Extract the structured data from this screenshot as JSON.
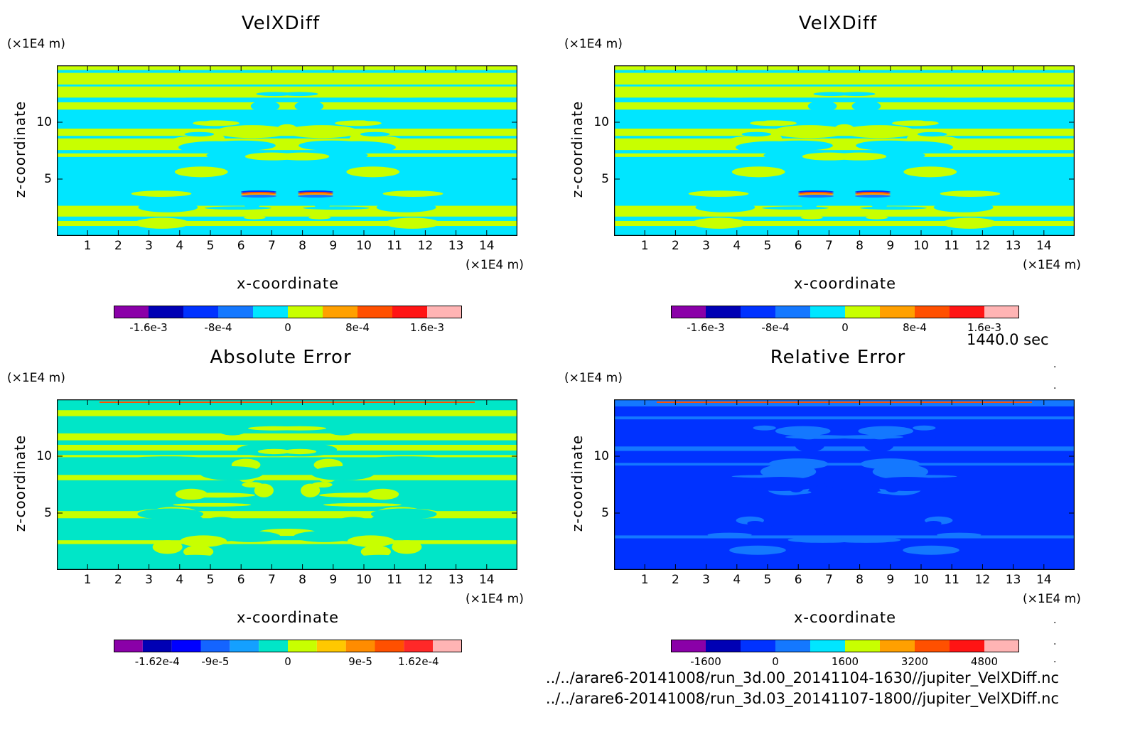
{
  "chart_data": [
    {
      "type": "heatmap",
      "title": "VelXDiff",
      "xlabel": "x-coordinate",
      "ylabel": "z-coordinate",
      "x_unit": "(×1E4 m)",
      "y_unit": "(×1E4 m)",
      "xticks": [
        "1",
        "2",
        "3",
        "4",
        "5",
        "6",
        "7",
        "8",
        "9",
        "10",
        "11",
        "12",
        "13",
        "14"
      ],
      "yticks": [
        "5",
        "10"
      ],
      "xlim": [
        0,
        15
      ],
      "ylim": [
        0,
        15
      ],
      "colorbar": {
        "colors": [
          "#8a00a8",
          "#0000b4",
          "#0032ff",
          "#1478ff",
          "#00e6ff",
          "#c8ff00",
          "#ffa000",
          "#ff5000",
          "#ff1414",
          "#ffb4b4"
        ],
        "tick_labels": [
          "-1.6e-3",
          "-8e-4",
          "0",
          "8e-4",
          "1.6e-3"
        ],
        "tick_values": [
          -0.0016,
          -0.0008,
          0,
          0.0008,
          0.0016
        ],
        "range": [
          -0.002,
          0.002
        ]
      },
      "dominant_colors": [
        "#00e6ff",
        "#c8ff00"
      ],
      "pattern": "velxdiff"
    },
    {
      "type": "heatmap",
      "title": "VelXDiff",
      "xlabel": "x-coordinate",
      "ylabel": "z-coordinate",
      "x_unit": "(×1E4 m)",
      "y_unit": "(×1E4 m)",
      "xticks": [
        "1",
        "2",
        "3",
        "4",
        "5",
        "6",
        "7",
        "8",
        "9",
        "10",
        "11",
        "12",
        "13",
        "14"
      ],
      "yticks": [
        "5",
        "10"
      ],
      "xlim": [
        0,
        15
      ],
      "ylim": [
        0,
        15
      ],
      "colorbar": {
        "colors": [
          "#8a00a8",
          "#0000b4",
          "#0032ff",
          "#1478ff",
          "#00e6ff",
          "#c8ff00",
          "#ffa000",
          "#ff5000",
          "#ff1414",
          "#ffb4b4"
        ],
        "tick_labels": [
          "-1.6e-3",
          "-8e-4",
          "0",
          "8e-4",
          "1.6e-3"
        ],
        "tick_values": [
          -0.0016,
          -0.0008,
          0,
          0.0008,
          0.0016
        ],
        "range": [
          -0.002,
          0.002
        ]
      },
      "dominant_colors": [
        "#00e6ff",
        "#c8ff00"
      ],
      "pattern": "velxdiff"
    },
    {
      "type": "heatmap",
      "title": "Absolute Error",
      "xlabel": "x-coordinate",
      "ylabel": "z-coordinate",
      "x_unit": "(×1E4 m)",
      "y_unit": "(×1E4 m)",
      "xticks": [
        "1",
        "2",
        "3",
        "4",
        "5",
        "6",
        "7",
        "8",
        "9",
        "10",
        "11",
        "12",
        "13",
        "14"
      ],
      "yticks": [
        "5",
        "10"
      ],
      "xlim": [
        0,
        15
      ],
      "ylim": [
        0,
        15
      ],
      "colorbar": {
        "colors": [
          "#8a00a8",
          "#0000b4",
          "#0000ff",
          "#1464ff",
          "#14a0ff",
          "#00e6c8",
          "#c8ff00",
          "#ffc800",
          "#ff8c00",
          "#ff5000",
          "#ff2828",
          "#ffb4b4"
        ],
        "tick_labels": [
          "-1.62e-4",
          "-9e-5",
          "0",
          "9e-5",
          "1.62e-4"
        ],
        "tick_values": [
          -0.000162,
          -9e-05,
          0,
          9e-05,
          0.000162
        ],
        "range": [
          -0.000216,
          0.000216
        ]
      },
      "dominant_colors": [
        "#00e6c8",
        "#c8ff00"
      ],
      "pattern": "error"
    },
    {
      "type": "heatmap",
      "title": "Relative Error",
      "xlabel": "x-coordinate",
      "ylabel": "z-coordinate",
      "x_unit": "(×1E4 m)",
      "y_unit": "(×1E4 m)",
      "xticks": [
        "1",
        "2",
        "3",
        "4",
        "5",
        "6",
        "7",
        "8",
        "9",
        "10",
        "11",
        "12",
        "13",
        "14"
      ],
      "yticks": [
        "5",
        "10"
      ],
      "xlim": [
        0,
        15
      ],
      "ylim": [
        0,
        15
      ],
      "colorbar": {
        "colors": [
          "#8a00a8",
          "#0000b4",
          "#0032ff",
          "#1478ff",
          "#00e6ff",
          "#c8ff00",
          "#ffa000",
          "#ff5000",
          "#ff1414",
          "#ffb4b4"
        ],
        "tick_labels": [
          "-1600",
          "0",
          "1600",
          "3200",
          "4800"
        ],
        "tick_values": [
          -1600,
          0,
          1600,
          3200,
          4800
        ],
        "range": [
          -2400,
          5600
        ]
      },
      "dominant_colors": [
        "#0032ff",
        "#1478ff"
      ],
      "pattern": "relerr"
    }
  ],
  "annotations": {
    "time": "1440.0 sec",
    "file1": "../../arare6-20141008/run_3d.00_20141104-1630//jupiter_VelXDiff.nc",
    "file2": "../../arare6-20141008/run_3d.03_20141107-1800//jupiter_VelXDiff.nc"
  }
}
